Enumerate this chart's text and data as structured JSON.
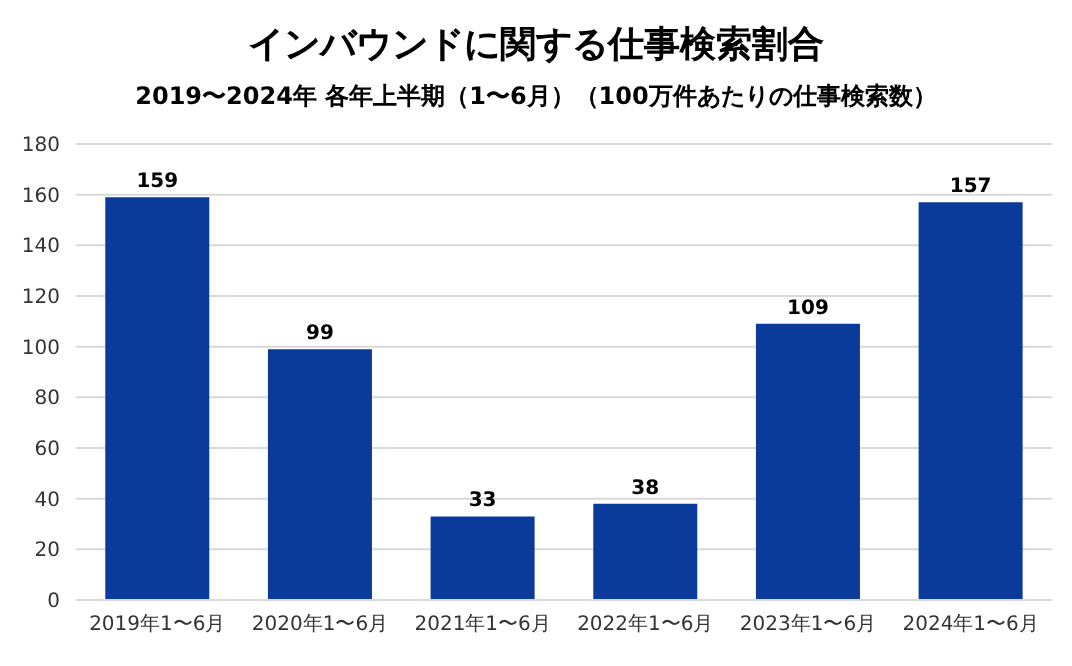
{
  "chart_data": {
    "type": "bar",
    "title": "インバウンドに関する仕事検索割合",
    "subtitle": "2019〜2024年 各年上半期（1〜6月）（100万件あたりの仕事検索数）",
    "categories": [
      "2019年1〜6月",
      "2020年1〜6月",
      "2021年1〜6月",
      "2022年1〜6月",
      "2023年1〜6月",
      "2024年1〜6月"
    ],
    "values": [
      159,
      99,
      33,
      38,
      109,
      157
    ],
    "color": "#0a3a9a",
    "ylim": [
      0,
      180
    ],
    "yticks": [
      0,
      20,
      40,
      60,
      80,
      100,
      120,
      140,
      160,
      180
    ],
    "grid": "y",
    "data_labels": true
  }
}
